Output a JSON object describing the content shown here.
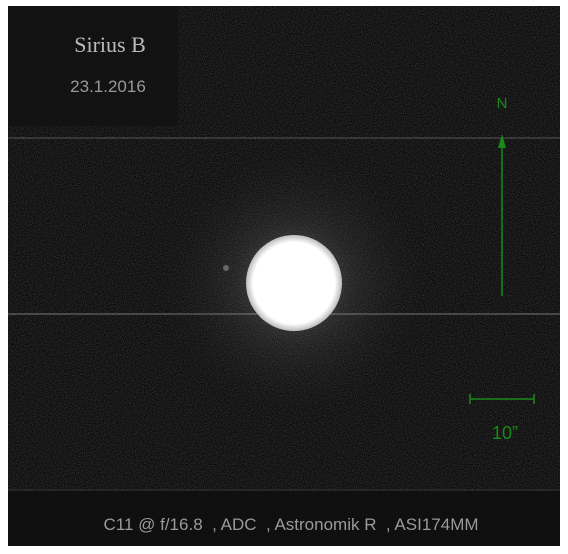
{
  "title": "Sirius B",
  "date": "23.1.2016",
  "north_label": "N",
  "scale_label": "10”",
  "caption": "C11 @ f/16.8  , ADC  , Astronomik R  , ASI174MM"
}
